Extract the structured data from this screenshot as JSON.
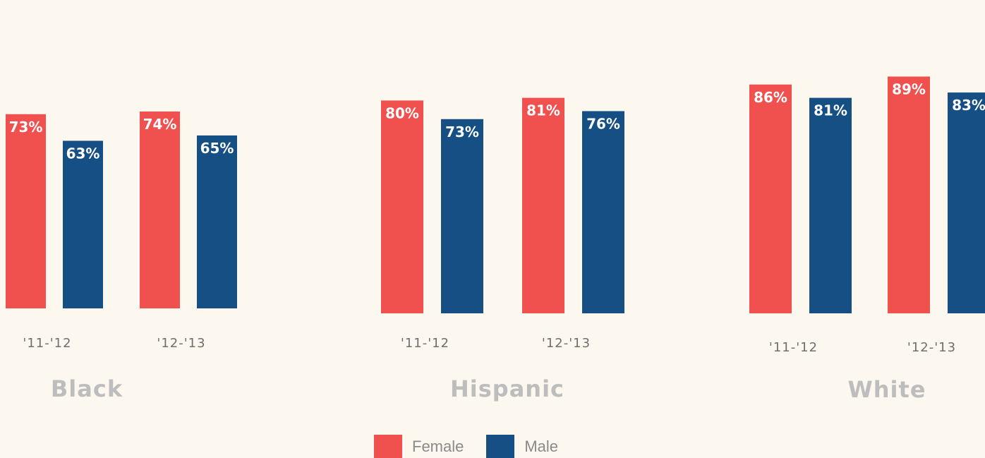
{
  "colors": {
    "female": "#f0514e",
    "male": "#154f83",
    "background": "#fcf7ef"
  },
  "legend": [
    {
      "label": "Female",
      "color": "#f0514e"
    },
    {
      "label": "Male",
      "color": "#154f83"
    }
  ],
  "chart_data": {
    "type": "bar",
    "categories": [
      "'11-'12",
      "'12-'13"
    ],
    "series": [
      {
        "name": "Female"
      },
      {
        "name": "Male"
      }
    ],
    "ylim": [
      0,
      100
    ],
    "grid": false,
    "legend_placement": "bottom-center",
    "groups": [
      {
        "title": "Black",
        "values": [
          {
            "category": "'11-'12",
            "Female": 73,
            "Male": 63
          },
          {
            "category": "'12-'13",
            "Female": 74,
            "Male": 65
          }
        ],
        "labels": [
          [
            "73%",
            "63%"
          ],
          [
            "74%",
            "65%"
          ]
        ]
      },
      {
        "title": "Hispanic",
        "values": [
          {
            "category": "'11-'12",
            "Female": 80,
            "Male": 73
          },
          {
            "category": "'12-'13",
            "Female": 81,
            "Male": 76
          }
        ],
        "labels": [
          [
            "80%",
            "73%"
          ],
          [
            "81%",
            "76%"
          ]
        ]
      },
      {
        "title": "White",
        "values": [
          {
            "category": "'11-'12",
            "Female": 86,
            "Male": 81
          },
          {
            "category": "'12-'13",
            "Female": 89,
            "Male": 83
          }
        ],
        "labels": [
          [
            "86%",
            "81%"
          ],
          [
            "89%",
            "83%"
          ]
        ]
      }
    ]
  }
}
